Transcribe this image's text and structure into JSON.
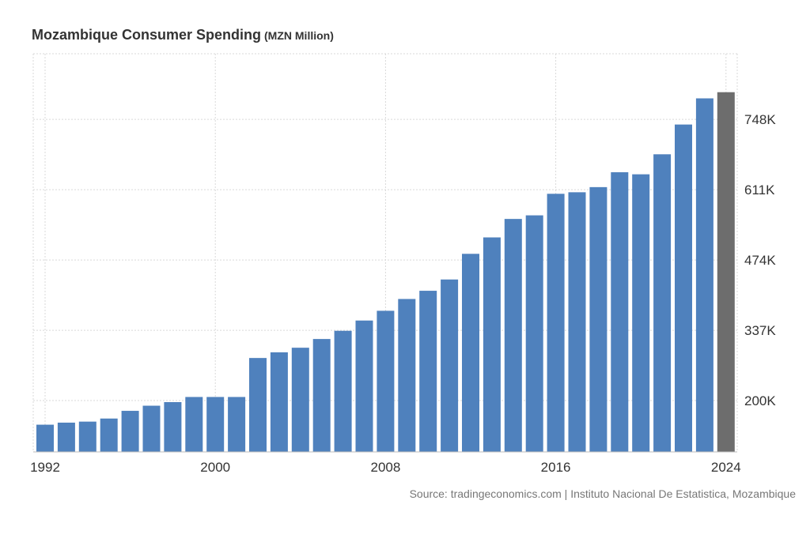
{
  "header": {
    "title": "Mozambique Consumer Spending",
    "unit": "(MZN Million)"
  },
  "source": "Source: tradingeconomics.com | Instituto Nacional De Estatistica, Mozambique",
  "colors": {
    "bar": "#4f81bd",
    "last_bar": "#6d6d6d",
    "grid": "#d9d9d9",
    "axis_text": "#333333"
  },
  "chart_data": {
    "type": "bar",
    "x_tick_labels": [
      "1992",
      "2000",
      "2008",
      "2016",
      "2024"
    ],
    "y_tick_labels": [
      "200K",
      "337K",
      "474K",
      "611K",
      "748K"
    ],
    "y_ticks": [
      200000,
      337000,
      474000,
      611000,
      748000
    ],
    "ylim": [
      100000,
      876000
    ],
    "y_axis_position": "right",
    "grid": true,
    "categories": [
      "1992",
      "1993",
      "1994",
      "1995",
      "1996",
      "1997",
      "1998",
      "1999",
      "2000",
      "2001",
      "2002",
      "2003",
      "2004",
      "2005",
      "2006",
      "2007",
      "2008",
      "2009",
      "2010",
      "2011",
      "2012",
      "2013",
      "2014",
      "2015",
      "2016",
      "2017",
      "2018",
      "2019",
      "2020",
      "2021",
      "2022",
      "2023",
      "2024"
    ],
    "values": [
      153000,
      157000,
      159000,
      165000,
      180000,
      190000,
      197000,
      207000,
      207000,
      207000,
      283000,
      294000,
      303000,
      320000,
      336000,
      356000,
      375000,
      398000,
      414000,
      436000,
      486000,
      518000,
      554000,
      561000,
      603000,
      606000,
      616000,
      645000,
      641000,
      680000,
      738000,
      789000,
      801000
    ],
    "highlight_last": true
  }
}
